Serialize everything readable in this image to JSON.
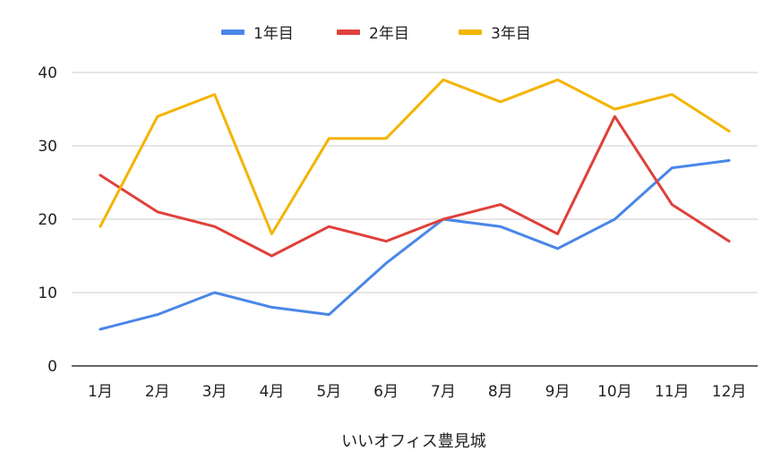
{
  "chart_data": {
    "type": "line",
    "categories": [
      "1月",
      "2月",
      "3月",
      "4月",
      "5月",
      "6月",
      "7月",
      "8月",
      "9月",
      "10月",
      "11月",
      "12月"
    ],
    "series": [
      {
        "name": "1年目",
        "color": "#4a86e8",
        "values": [
          5,
          7,
          10,
          8,
          7,
          14,
          20,
          19,
          16,
          20,
          27,
          28
        ]
      },
      {
        "name": "2年目",
        "color": "#e0403a",
        "values": [
          26,
          21,
          19,
          15,
          19,
          17,
          20,
          22,
          18,
          34,
          22,
          17
        ]
      },
      {
        "name": "3年目",
        "color": "#f4b400",
        "values": [
          19,
          34,
          37,
          18,
          31,
          31,
          39,
          36,
          39,
          35,
          37,
          32
        ]
      }
    ],
    "xlabel": "いいオフィス豊見城",
    "ylabel": "",
    "ylim": [
      0,
      40
    ],
    "yticks": [
      0,
      10,
      20,
      30,
      40
    ],
    "grid": true,
    "legend_position": "top-center"
  }
}
